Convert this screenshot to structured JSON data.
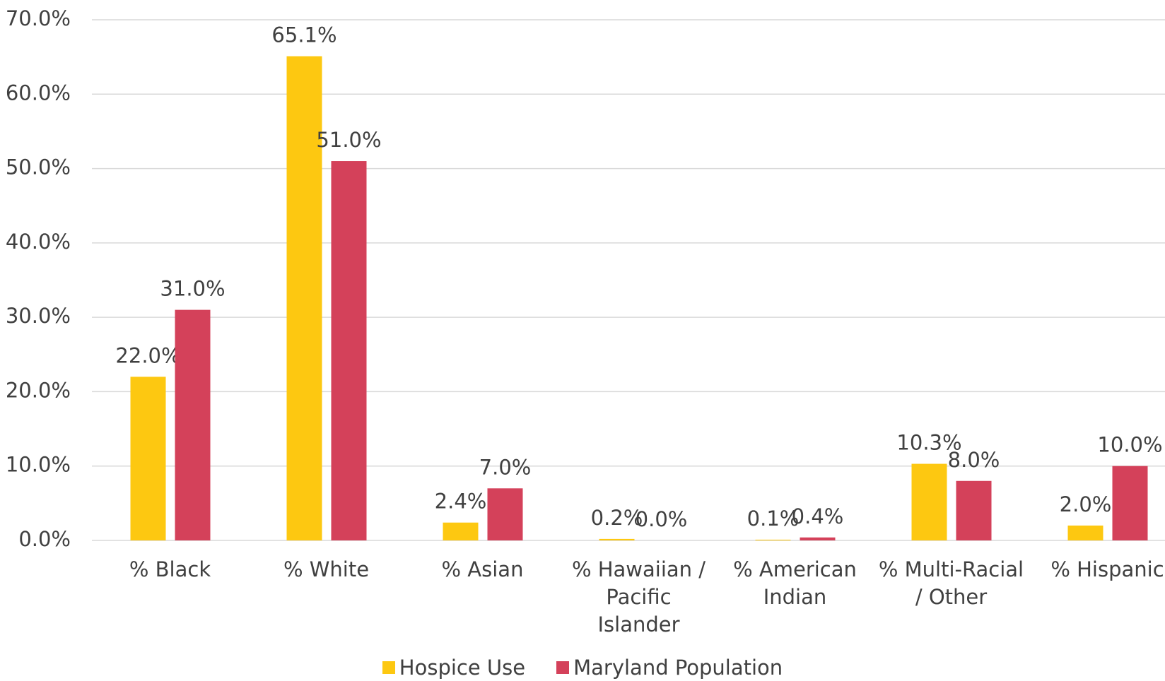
{
  "chart_data": {
    "type": "bar",
    "categories": [
      "% Black",
      "% White",
      "% Asian",
      "% Hawaiian / Pacific Islander",
      "% American Indian",
      "% Multi-Racial / Other",
      "% Hispanic"
    ],
    "series": [
      {
        "name": "Hospice Use",
        "color": "#FDC811",
        "values": [
          22.0,
          65.1,
          2.4,
          0.2,
          0.1,
          10.3,
          2.0
        ],
        "value_labels": [
          "22.0%",
          "65.1%",
          "2.4%",
          "0.2%",
          "0.1%",
          "10.3%",
          "2.0%"
        ]
      },
      {
        "name": "Maryland Population",
        "color": "#D4415A",
        "values": [
          31.0,
          51.0,
          7.0,
          0.0,
          0.4,
          8.0,
          10.0
        ],
        "value_labels": [
          "31.0%",
          "51.0%",
          "7.0%",
          "0.0%",
          "0.4%",
          "8.0%",
          "10.0%"
        ]
      }
    ],
    "ylim": [
      0,
      70
    ],
    "yticks": [
      {
        "value": 0,
        "label": "0.0%"
      },
      {
        "value": 10,
        "label": "10.0%"
      },
      {
        "value": 20,
        "label": "20.0%"
      },
      {
        "value": 30,
        "label": "30.0%"
      },
      {
        "value": 40,
        "label": "40.0%"
      },
      {
        "value": 50,
        "label": "50.0%"
      },
      {
        "value": 60,
        "label": "60.0%"
      },
      {
        "value": 70,
        "label": "70.0%"
      }
    ],
    "grid": true,
    "legend": "bottom"
  }
}
